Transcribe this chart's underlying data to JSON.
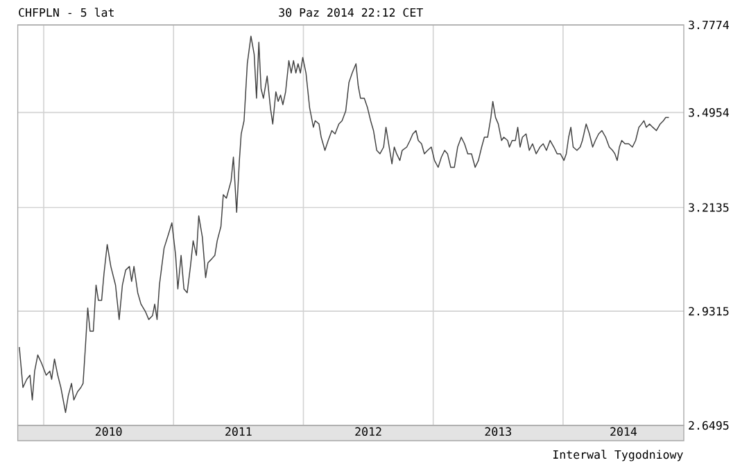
{
  "chart_data": {
    "type": "line",
    "title": "CHFPLN - 5 lat",
    "subtitle": "30 Paz 2014 22:12 CET",
    "annotations": [
      "Interwal Tygodniowy"
    ],
    "log": true,
    "grid": true,
    "xlim": [
      2009.8,
      2014.93
    ],
    "ylim": [
      2.6495,
      3.7774
    ],
    "xticks": [
      {
        "value": 2010,
        "label": null
      },
      {
        "value": 2011,
        "label": null
      },
      {
        "value": 2012,
        "label": null
      },
      {
        "value": 2013,
        "label": null
      },
      {
        "value": 2014,
        "label": null
      },
      {
        "value": 2010.5,
        "label": "2010"
      },
      {
        "value": 2011.5,
        "label": "2011"
      },
      {
        "value": 2012.5,
        "label": "2012"
      },
      {
        "value": 2013.5,
        "label": "2013"
      },
      {
        "value": 2014.465,
        "label": "2014"
      }
    ],
    "yticks": [
      2.6495,
      2.9315,
      3.2135,
      3.4954,
      3.7774
    ],
    "x": [
      2009.812,
      2009.84,
      2009.869,
      2009.894,
      2009.912,
      2009.93,
      2009.954,
      2009.983,
      2010.019,
      2010.047,
      2010.061,
      2010.083,
      2010.108,
      2010.132,
      2010.168,
      2010.189,
      2010.214,
      2010.232,
      2010.261,
      2010.286,
      2010.303,
      2010.321,
      2010.339,
      2010.357,
      2010.382,
      2010.403,
      2010.421,
      2010.446,
      2010.464,
      2010.489,
      2010.517,
      2010.553,
      2010.581,
      2010.606,
      2010.631,
      2010.66,
      2010.677,
      2010.695,
      2010.724,
      2010.749,
      2010.784,
      2010.809,
      2010.838,
      2010.855,
      2010.873,
      2010.891,
      2010.927,
      2010.962,
      2010.987,
      2011.016,
      2011.033,
      2011.058,
      2011.08,
      2011.105,
      2011.13,
      2011.151,
      2011.176,
      2011.194,
      2011.222,
      2011.247,
      2011.265,
      2011.293,
      2011.318,
      2011.336,
      2011.365,
      2011.383,
      2011.407,
      2011.443,
      2011.461,
      2011.486,
      2011.507,
      2011.521,
      2011.543,
      2011.568,
      2011.596,
      2011.621,
      2011.639,
      2011.657,
      2011.674,
      2011.692,
      2011.721,
      2011.746,
      2011.764,
      2011.788,
      2011.806,
      2011.824,
      2011.842,
      2011.863,
      2011.888,
      2011.906,
      2011.924,
      2011.942,
      2011.959,
      2011.977,
      2011.995,
      2012.02,
      2012.048,
      2012.077,
      2012.091,
      2012.12,
      2012.137,
      2012.166,
      2012.191,
      2012.219,
      2012.244,
      2012.273,
      2012.298,
      2012.326,
      2012.351,
      2012.376,
      2012.405,
      2012.422,
      2012.44,
      2012.469,
      2012.494,
      2012.518,
      2012.54,
      2012.565,
      2012.59,
      2012.618,
      2012.636,
      2012.661,
      2012.682,
      2012.7,
      2012.718,
      2012.743,
      2012.761,
      2012.796,
      2012.821,
      2012.843,
      2012.867,
      2012.885,
      2012.91,
      2012.932,
      2012.957,
      2012.985,
      2013.01,
      2013.038,
      2013.063,
      2013.088,
      2013.11,
      2013.135,
      2013.163,
      2013.188,
      2013.216,
      2013.241,
      2013.266,
      2013.295,
      2013.323,
      2013.348,
      2013.373,
      2013.394,
      2013.419,
      2013.444,
      2013.459,
      2013.48,
      2013.501,
      2013.526,
      2013.544,
      2013.573,
      2013.587,
      2013.608,
      2013.633,
      2013.651,
      2013.669,
      2013.687,
      2013.715,
      2013.74,
      2013.765,
      2013.793,
      2013.822,
      2013.847,
      2013.872,
      2013.9,
      2013.929,
      2013.954,
      2013.979,
      2014.007,
      2014.025,
      2014.043,
      2014.06,
      2014.078,
      2014.107,
      2014.132,
      2014.149,
      2014.178,
      2014.203,
      2014.228,
      2014.249,
      2014.274,
      2014.299,
      2014.328,
      2014.356,
      2014.381,
      2014.399,
      2014.417,
      2014.434,
      2014.452,
      2014.477,
      2014.506,
      2014.534,
      2014.559,
      2014.584,
      2014.605,
      2014.623,
      2014.641,
      2014.666,
      2014.691,
      2014.719,
      2014.748,
      2014.773,
      2014.79,
      2014.815
    ],
    "series": [
      {
        "color": "#404040",
        "values": [
          2.84,
          2.74,
          2.76,
          2.77,
          2.71,
          2.78,
          2.82,
          2.8,
          2.77,
          2.78,
          2.76,
          2.81,
          2.77,
          2.74,
          2.68,
          2.72,
          2.75,
          2.71,
          2.73,
          2.74,
          2.75,
          2.84,
          2.94,
          2.88,
          2.88,
          3.0,
          2.96,
          2.96,
          3.03,
          3.11,
          3.05,
          3.0,
          2.91,
          3.0,
          3.04,
          3.05,
          3.01,
          3.05,
          2.98,
          2.95,
          2.93,
          2.91,
          2.92,
          2.95,
          2.91,
          3.0,
          3.1,
          3.14,
          3.17,
          3.08,
          2.99,
          3.08,
          2.99,
          2.98,
          3.05,
          3.12,
          3.08,
          3.19,
          3.13,
          3.02,
          3.06,
          3.07,
          3.08,
          3.12,
          3.16,
          3.25,
          3.24,
          3.29,
          3.36,
          3.2,
          3.35,
          3.43,
          3.47,
          3.65,
          3.74,
          3.68,
          3.54,
          3.72,
          3.57,
          3.54,
          3.61,
          3.51,
          3.46,
          3.56,
          3.53,
          3.55,
          3.52,
          3.56,
          3.66,
          3.62,
          3.66,
          3.62,
          3.65,
          3.62,
          3.67,
          3.62,
          3.51,
          3.45,
          3.47,
          3.46,
          3.42,
          3.38,
          3.41,
          3.44,
          3.43,
          3.46,
          3.47,
          3.5,
          3.59,
          3.62,
          3.65,
          3.58,
          3.54,
          3.54,
          3.51,
          3.47,
          3.44,
          3.38,
          3.37,
          3.39,
          3.45,
          3.39,
          3.34,
          3.39,
          3.37,
          3.35,
          3.38,
          3.39,
          3.41,
          3.43,
          3.44,
          3.41,
          3.4,
          3.37,
          3.38,
          3.39,
          3.35,
          3.33,
          3.36,
          3.38,
          3.37,
          3.33,
          3.33,
          3.39,
          3.42,
          3.4,
          3.37,
          3.37,
          3.33,
          3.35,
          3.39,
          3.42,
          3.42,
          3.48,
          3.53,
          3.48,
          3.46,
          3.41,
          3.42,
          3.41,
          3.39,
          3.41,
          3.41,
          3.45,
          3.39,
          3.42,
          3.43,
          3.38,
          3.4,
          3.37,
          3.39,
          3.4,
          3.38,
          3.41,
          3.39,
          3.37,
          3.37,
          3.35,
          3.37,
          3.42,
          3.45,
          3.39,
          3.38,
          3.39,
          3.41,
          3.46,
          3.43,
          3.39,
          3.41,
          3.43,
          3.44,
          3.42,
          3.39,
          3.38,
          3.37,
          3.35,
          3.39,
          3.41,
          3.4,
          3.4,
          3.39,
          3.41,
          3.45,
          3.46,
          3.47,
          3.45,
          3.46,
          3.45,
          3.44,
          3.46,
          3.47,
          3.48,
          3.48
        ]
      }
    ]
  }
}
